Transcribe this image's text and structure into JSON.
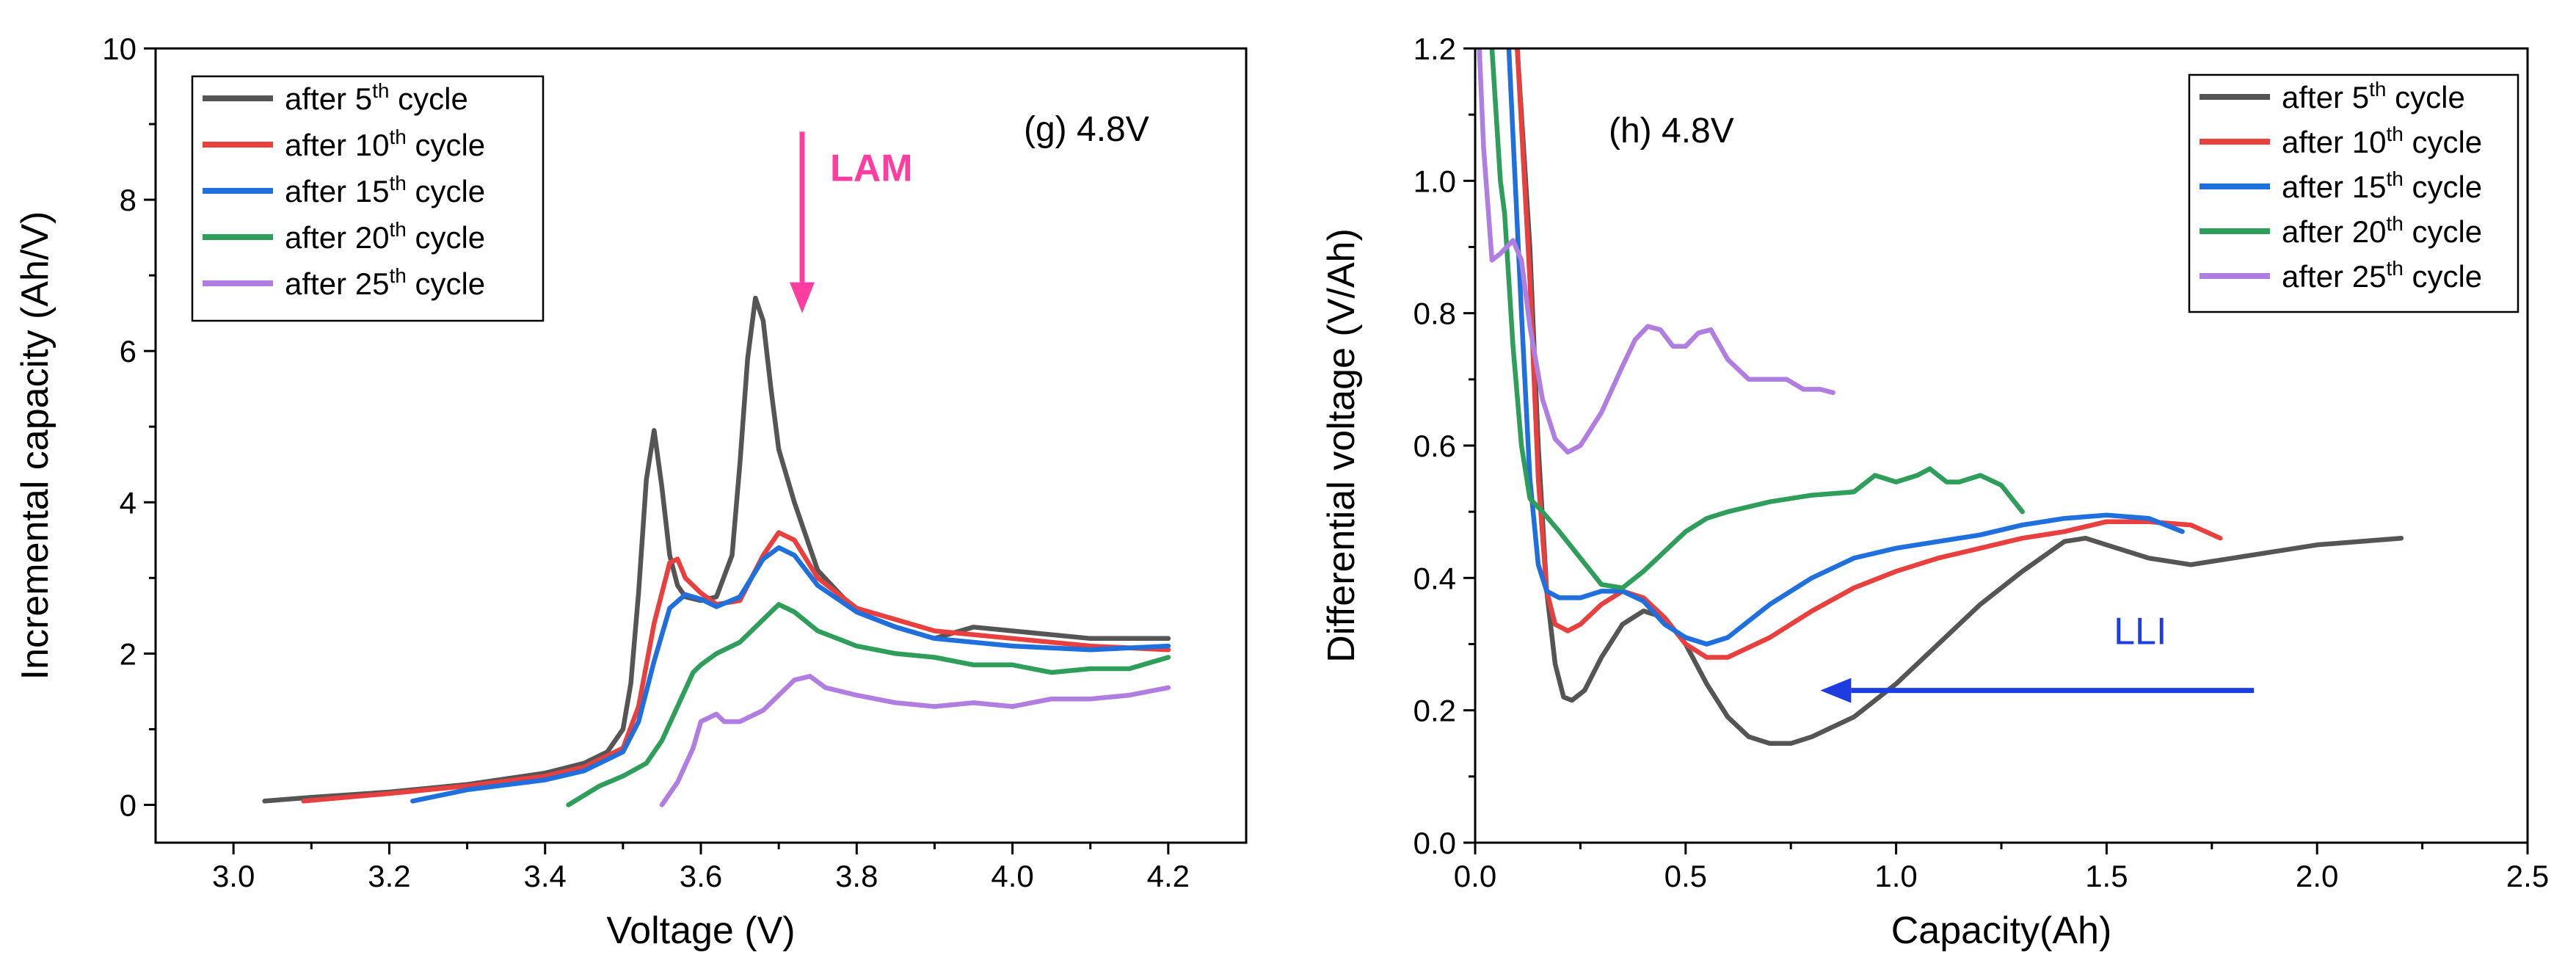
{
  "chart_data": [
    {
      "id": "panel-g",
      "type": "line",
      "annotation": "(g) 4.8V",
      "xlabel": "Voltage (V)",
      "ylabel": "Incremental capacity (Ah/V)",
      "xlim": [
        2.9,
        4.3
      ],
      "ylim": [
        -0.5,
        10
      ],
      "xticks": [
        3.0,
        3.2,
        3.4,
        3.6,
        3.8,
        4.0,
        4.2
      ],
      "xtick_labels": [
        "3.0",
        "3.2",
        "3.4",
        "3.6",
        "3.8",
        "4.0",
        "4.2"
      ],
      "yticks": [
        0,
        2,
        4,
        6,
        8,
        10
      ],
      "ytick_labels": [
        "0",
        "2",
        "4",
        "6",
        "8",
        "10"
      ],
      "legend_position": "top-left",
      "arrow": {
        "label": "LAM",
        "color": "#ff3ca0",
        "from": [
          3.73,
          8.9
        ],
        "to": [
          3.73,
          6.5
        ]
      },
      "series": [
        {
          "name": "after 5th cycle",
          "prefix": "after 5",
          "sup": "th",
          "suffix": " cycle",
          "color": "#555555",
          "x": [
            3.04,
            3.1,
            3.2,
            3.3,
            3.4,
            3.45,
            3.48,
            3.5,
            3.51,
            3.52,
            3.53,
            3.54,
            3.55,
            3.56,
            3.57,
            3.58,
            3.6,
            3.62,
            3.64,
            3.65,
            3.66,
            3.67,
            3.68,
            3.69,
            3.7,
            3.72,
            3.75,
            3.8,
            3.85,
            3.9,
            3.95,
            4.0,
            4.1,
            4.2
          ],
          "y": [
            0.05,
            0.1,
            0.17,
            0.27,
            0.42,
            0.55,
            0.7,
            1.0,
            1.6,
            2.8,
            4.3,
            4.95,
            4.2,
            3.3,
            2.9,
            2.75,
            2.7,
            2.75,
            3.3,
            4.5,
            5.9,
            6.7,
            6.4,
            5.5,
            4.7,
            4.0,
            3.1,
            2.55,
            2.35,
            2.2,
            2.35,
            2.3,
            2.2,
            2.2
          ]
        },
        {
          "name": "after 10th cycle",
          "prefix": "after 10",
          "sup": "th",
          "suffix": " cycle",
          "color": "#e8403f",
          "x": [
            3.09,
            3.2,
            3.3,
            3.4,
            3.45,
            3.5,
            3.52,
            3.54,
            3.56,
            3.57,
            3.58,
            3.6,
            3.62,
            3.65,
            3.68,
            3.7,
            3.72,
            3.75,
            3.8,
            3.85,
            3.9,
            4.0,
            4.1,
            4.2
          ],
          "y": [
            0.05,
            0.15,
            0.25,
            0.38,
            0.5,
            0.75,
            1.3,
            2.4,
            3.2,
            3.25,
            3.0,
            2.8,
            2.65,
            2.7,
            3.3,
            3.6,
            3.5,
            3.0,
            2.6,
            2.45,
            2.3,
            2.2,
            2.1,
            2.05
          ]
        },
        {
          "name": "after 15th cycle",
          "prefix": "after 15",
          "sup": "th",
          "suffix": " cycle",
          "color": "#1f6fdc",
          "x": [
            3.23,
            3.3,
            3.4,
            3.45,
            3.5,
            3.52,
            3.54,
            3.56,
            3.58,
            3.6,
            3.62,
            3.65,
            3.68,
            3.7,
            3.72,
            3.75,
            3.8,
            3.85,
            3.9,
            4.0,
            4.1,
            4.2
          ],
          "y": [
            0.05,
            0.2,
            0.33,
            0.45,
            0.7,
            1.1,
            1.9,
            2.6,
            2.78,
            2.72,
            2.62,
            2.75,
            3.25,
            3.4,
            3.3,
            2.9,
            2.55,
            2.35,
            2.2,
            2.1,
            2.05,
            2.1
          ]
        },
        {
          "name": "after 20th cycle",
          "prefix": "after 20",
          "sup": "th",
          "suffix": " cycle",
          "color": "#2e9e5a",
          "x": [
            3.43,
            3.47,
            3.5,
            3.53,
            3.55,
            3.57,
            3.59,
            3.6,
            3.62,
            3.65,
            3.68,
            3.7,
            3.72,
            3.75,
            3.8,
            3.85,
            3.9,
            3.95,
            4.0,
            4.05,
            4.1,
            4.15,
            4.2
          ],
          "y": [
            0.0,
            0.25,
            0.38,
            0.55,
            0.85,
            1.3,
            1.75,
            1.85,
            2.0,
            2.15,
            2.45,
            2.65,
            2.55,
            2.3,
            2.1,
            2.0,
            1.95,
            1.85,
            1.85,
            1.75,
            1.8,
            1.8,
            1.95
          ]
        },
        {
          "name": "after 25th cycle",
          "prefix": "after 25",
          "sup": "th",
          "suffix": " cycle",
          "color": "#b07ee0",
          "x": [
            3.55,
            3.57,
            3.59,
            3.6,
            3.62,
            3.63,
            3.65,
            3.68,
            3.7,
            3.72,
            3.74,
            3.76,
            3.8,
            3.85,
            3.9,
            3.95,
            4.0,
            4.05,
            4.1,
            4.15,
            4.2
          ],
          "y": [
            0.0,
            0.3,
            0.75,
            1.1,
            1.2,
            1.1,
            1.1,
            1.25,
            1.45,
            1.65,
            1.7,
            1.55,
            1.45,
            1.35,
            1.3,
            1.35,
            1.3,
            1.4,
            1.4,
            1.45,
            1.55
          ]
        }
      ]
    },
    {
      "id": "panel-h",
      "type": "line",
      "annotation": "(h) 4.8V",
      "xlabel": "Capacity(Ah)",
      "ylabel": "Differential voltage (V/Ah)",
      "xlim": [
        0.0,
        2.5
      ],
      "ylim": [
        0.0,
        1.2
      ],
      "xticks": [
        0.0,
        0.5,
        1.0,
        1.5,
        2.0,
        2.5
      ],
      "xtick_labels": [
        "0.0",
        "0.5",
        "1.0",
        "1.5",
        "2.0",
        "2.5"
      ],
      "yticks": [
        0.0,
        0.2,
        0.4,
        0.6,
        0.8,
        1.0,
        1.2
      ],
      "ytick_labels": [
        "0.0",
        "0.2",
        "0.4",
        "0.6",
        "0.8",
        "1.0",
        "1.2"
      ],
      "legend_position": "top-right",
      "arrow": {
        "label": "LLI",
        "color": "#1d3de0",
        "from": [
          1.85,
          0.23
        ],
        "to": [
          0.82,
          0.23
        ]
      },
      "series": [
        {
          "name": "after 5th cycle",
          "prefix": "after 5",
          "sup": "th",
          "suffix": " cycle",
          "color": "#555555",
          "x": [
            0.1,
            0.13,
            0.15,
            0.17,
            0.19,
            0.21,
            0.23,
            0.26,
            0.3,
            0.35,
            0.4,
            0.45,
            0.5,
            0.55,
            0.6,
            0.65,
            0.7,
            0.75,
            0.8,
            0.9,
            1.0,
            1.1,
            1.2,
            1.3,
            1.4,
            1.45,
            1.5,
            1.6,
            1.7,
            1.8,
            1.9,
            2.0,
            2.1,
            2.2
          ],
          "y": [
            1.2,
            0.9,
            0.6,
            0.38,
            0.27,
            0.22,
            0.215,
            0.23,
            0.28,
            0.33,
            0.35,
            0.34,
            0.3,
            0.24,
            0.19,
            0.16,
            0.15,
            0.15,
            0.16,
            0.19,
            0.24,
            0.3,
            0.36,
            0.41,
            0.455,
            0.46,
            0.45,
            0.43,
            0.42,
            0.43,
            0.44,
            0.45,
            0.455,
            0.46
          ]
        },
        {
          "name": "after 10th cycle",
          "prefix": "after 10",
          "sup": "th",
          "suffix": " cycle",
          "color": "#e8403f",
          "x": [
            0.1,
            0.13,
            0.15,
            0.17,
            0.19,
            0.22,
            0.25,
            0.3,
            0.35,
            0.4,
            0.45,
            0.5,
            0.55,
            0.6,
            0.7,
            0.8,
            0.9,
            1.0,
            1.1,
            1.2,
            1.3,
            1.4,
            1.5,
            1.6,
            1.7,
            1.77
          ],
          "y": [
            1.2,
            0.85,
            0.55,
            0.38,
            0.33,
            0.32,
            0.33,
            0.36,
            0.38,
            0.37,
            0.34,
            0.3,
            0.28,
            0.28,
            0.31,
            0.35,
            0.385,
            0.41,
            0.43,
            0.445,
            0.46,
            0.47,
            0.485,
            0.485,
            0.48,
            0.46
          ]
        },
        {
          "name": "after 15th cycle",
          "prefix": "after 15",
          "sup": "th",
          "suffix": " cycle",
          "color": "#1f6fdc",
          "x": [
            0.08,
            0.11,
            0.13,
            0.15,
            0.17,
            0.2,
            0.25,
            0.3,
            0.35,
            0.4,
            0.45,
            0.5,
            0.55,
            0.6,
            0.7,
            0.8,
            0.9,
            1.0,
            1.1,
            1.2,
            1.3,
            1.4,
            1.5,
            1.6,
            1.68
          ],
          "y": [
            1.2,
            0.8,
            0.55,
            0.42,
            0.38,
            0.37,
            0.37,
            0.38,
            0.38,
            0.365,
            0.33,
            0.31,
            0.3,
            0.31,
            0.36,
            0.4,
            0.43,
            0.445,
            0.455,
            0.465,
            0.48,
            0.49,
            0.495,
            0.49,
            0.47
          ]
        },
        {
          "name": "after 20th cycle",
          "prefix": "after 20",
          "sup": "th",
          "suffix": " cycle",
          "color": "#2e9e5a",
          "x": [
            0.04,
            0.06,
            0.07,
            0.09,
            0.11,
            0.13,
            0.16,
            0.2,
            0.25,
            0.3,
            0.35,
            0.4,
            0.45,
            0.5,
            0.55,
            0.6,
            0.7,
            0.8,
            0.9,
            0.95,
            1.0,
            1.05,
            1.08,
            1.12,
            1.15,
            1.2,
            1.25,
            1.3
          ],
          "y": [
            1.2,
            1.0,
            0.95,
            0.75,
            0.6,
            0.52,
            0.5,
            0.47,
            0.43,
            0.39,
            0.385,
            0.41,
            0.44,
            0.47,
            0.49,
            0.5,
            0.515,
            0.525,
            0.53,
            0.555,
            0.545,
            0.555,
            0.565,
            0.545,
            0.545,
            0.555,
            0.54,
            0.5
          ]
        },
        {
          "name": "after 25th cycle",
          "prefix": "after 25",
          "sup": "th",
          "suffix": " cycle",
          "color": "#b07ee0",
          "x": [
            0.01,
            0.02,
            0.04,
            0.06,
            0.09,
            0.11,
            0.13,
            0.16,
            0.19,
            0.22,
            0.25,
            0.3,
            0.35,
            0.38,
            0.41,
            0.44,
            0.47,
            0.5,
            0.53,
            0.56,
            0.6,
            0.65,
            0.7,
            0.74,
            0.78,
            0.82,
            0.85
          ],
          "y": [
            1.2,
            1.05,
            0.88,
            0.89,
            0.91,
            0.88,
            0.78,
            0.67,
            0.61,
            0.59,
            0.6,
            0.65,
            0.72,
            0.76,
            0.78,
            0.775,
            0.75,
            0.75,
            0.77,
            0.775,
            0.73,
            0.7,
            0.7,
            0.7,
            0.685,
            0.685,
            0.68
          ]
        }
      ]
    }
  ]
}
